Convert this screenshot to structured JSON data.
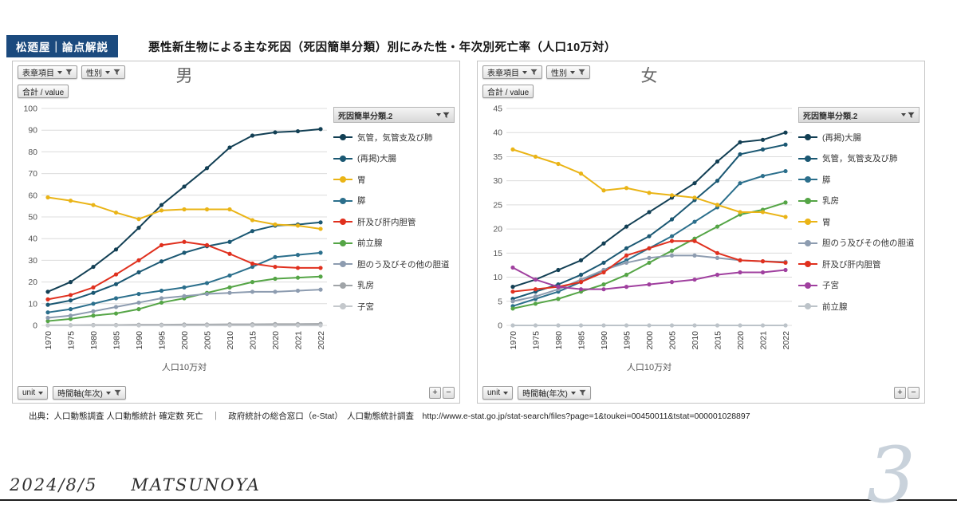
{
  "header": {
    "badge": "松廼屋｜論点解説",
    "title": "悪性新生物による主な死因（死因簡単分類）別にみた性・年次別死亡率（人口10万対）"
  },
  "controls": {
    "display_item": "表章項目",
    "sex": "性別",
    "aggregate": "合計 / value",
    "unit": "unit",
    "time_axis": "時間軸(年次)",
    "zoom_in": "+",
    "zoom_out": "−"
  },
  "panels": [
    {
      "chart_title": "男",
      "legend_header": "死因簡単分類.2"
    },
    {
      "chart_title": "女",
      "legend_header": "死因簡単分類.2"
    }
  ],
  "source": "出典：人口動態調査 人口動態統計 確定数 死亡　｜　政府統計の総合窓口（e-Stat）　人口動態統計調査　http://www.e-stat.go.jp/stat-search/files?page=1&toukei=00450011&tstat=000001028897",
  "footer": {
    "date": "2024/8/5",
    "author": "MATSUNOYA",
    "page_number": "3"
  },
  "chart_data": [
    {
      "type": "line",
      "title": "男",
      "categories": [
        "1970",
        "1975",
        "1980",
        "1985",
        "1990",
        "1995",
        "2000",
        "2005",
        "2010",
        "2015",
        "2020",
        "2021",
        "2022"
      ],
      "xlabel": "人口10万対",
      "ylabel": "",
      "ylim": [
        0,
        100
      ],
      "ytick": 10,
      "grid": true,
      "legend_position": "right",
      "series": [
        {
          "name": "気管，気管支及び肺",
          "color": "#123f54",
          "values": [
            15.5,
            20,
            27,
            35,
            45,
            55.5,
            64,
            72.5,
            82,
            87.5,
            89,
            89.5,
            90.5
          ]
        },
        {
          "name": "(再掲)大腸",
          "color": "#1b5873",
          "values": [
            9.5,
            11.5,
            15,
            19,
            24.5,
            29.5,
            33.5,
            36.5,
            38.5,
            43.5,
            46,
            46.5,
            47.5
          ]
        },
        {
          "name": "胃",
          "color": "#eab416",
          "values": [
            59,
            57.5,
            55.5,
            52,
            49,
            53,
            53.5,
            53.5,
            53.5,
            48.5,
            46.5,
            46,
            44.5
          ]
        },
        {
          "name": "膵",
          "color": "#2b6f8c",
          "values": [
            6,
            7.5,
            10,
            12.5,
            14.5,
            16,
            17.5,
            19.5,
            23,
            27,
            31.5,
            32.5,
            33.5
          ]
        },
        {
          "name": "肝及び肝内胆管",
          "color": "#e0301e",
          "values": [
            12,
            14,
            17.5,
            23.5,
            30,
            37,
            38.5,
            37,
            33,
            28.5,
            27,
            26.5,
            26.5
          ]
        },
        {
          "name": "前立腺",
          "color": "#55a546",
          "values": [
            2,
            3,
            4.5,
            5.5,
            7.5,
            10.5,
            12.5,
            15,
            17.5,
            20,
            21.5,
            22,
            22.5
          ]
        },
        {
          "name": "胆のう及びその他の胆道",
          "color": "#8d9cb0",
          "values": [
            3.5,
            4.5,
            6.5,
            8.5,
            10.5,
            12.5,
            13.5,
            14.5,
            15,
            15.5,
            15.5,
            16,
            16.5
          ]
        },
        {
          "name": "乳房",
          "color": "#a0a4a8",
          "values": [
            0.1,
            0.1,
            0.2,
            0.2,
            0.3,
            0.3,
            0.4,
            0.4,
            0.5,
            0.5,
            0.6,
            0.6,
            0.7
          ]
        },
        {
          "name": "子宮",
          "color": "#c4c8cc",
          "values": [
            0,
            0,
            0,
            0,
            0,
            0,
            0,
            0,
            0,
            0,
            0,
            0,
            0
          ]
        }
      ]
    },
    {
      "type": "line",
      "title": "女",
      "categories": [
        "1970",
        "1975",
        "1980",
        "1985",
        "1990",
        "1995",
        "2000",
        "2005",
        "2010",
        "2015",
        "2020",
        "2021",
        "2022"
      ],
      "xlabel": "人口10万対",
      "ylabel": "",
      "ylim": [
        0,
        45
      ],
      "ytick": 5,
      "grid": true,
      "legend_position": "right",
      "series": [
        {
          "name": "(再掲)大腸",
          "color": "#123f54",
          "values": [
            8,
            9.5,
            11.5,
            13.5,
            17,
            20.5,
            23.5,
            26.5,
            29.5,
            34,
            38,
            38.5,
            40
          ]
        },
        {
          "name": "気管，気管支及び肺",
          "color": "#1b5873",
          "values": [
            5.5,
            7,
            8.5,
            10.5,
            13,
            16,
            18.5,
            22,
            26,
            30,
            35.5,
            36.5,
            37.5
          ]
        },
        {
          "name": "膵",
          "color": "#2b6f8c",
          "values": [
            4,
            5.5,
            7,
            9,
            11.5,
            13.5,
            16,
            18.5,
            21.5,
            24.5,
            29.5,
            31,
            32
          ]
        },
        {
          "name": "乳房",
          "color": "#55a546",
          "values": [
            3.5,
            4.5,
            5.5,
            7,
            8.5,
            10.5,
            13,
            15.5,
            18,
            20.5,
            23,
            24,
            25.5
          ]
        },
        {
          "name": "胃",
          "color": "#eab416",
          "values": [
            36.5,
            35,
            33.5,
            31.5,
            28,
            28.5,
            27.5,
            27,
            26.5,
            25,
            23.5,
            23.5,
            22.5
          ]
        },
        {
          "name": "胆のう及びその他の胆道",
          "color": "#8d9cb0",
          "values": [
            5,
            6,
            7.5,
            9.5,
            11.5,
            13,
            14,
            14.5,
            14.5,
            14,
            13.5,
            13.3,
            13.2
          ]
        },
        {
          "name": "肝及び肝内胆管",
          "color": "#e0301e",
          "values": [
            7,
            7.5,
            8,
            9,
            11,
            14.5,
            16,
            17.5,
            17.5,
            15,
            13.5,
            13.3,
            13
          ]
        },
        {
          "name": "子宮",
          "color": "#a0409f",
          "values": [
            12,
            9.5,
            8,
            7.5,
            7.5,
            8,
            8.5,
            9,
            9.5,
            10.5,
            11,
            11,
            11.5
          ]
        },
        {
          "name": "前立腺",
          "color": "#bcc3c9",
          "values": [
            0,
            0,
            0,
            0,
            0,
            0,
            0,
            0,
            0,
            0,
            0,
            0,
            0
          ]
        }
      ]
    }
  ]
}
